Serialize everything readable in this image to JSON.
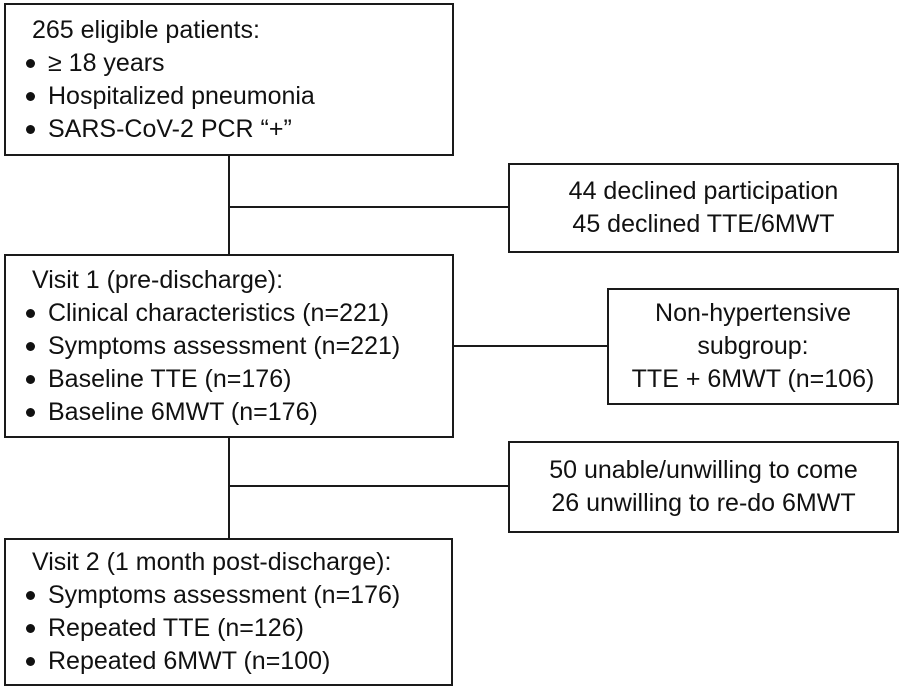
{
  "colors": {
    "background": "#ffffff",
    "box_border": "#1a1a1a",
    "text": "#111111",
    "connector": "#1a1a1a"
  },
  "boxes": {
    "eligible": {
      "title": "265 eligible patients:",
      "bullets": [
        "≥ 18 years",
        "Hospitalized pneumonia",
        "SARS-CoV-2 PCR “+”"
      ]
    },
    "declined": {
      "lines": [
        "44 declined participation",
        "45 declined TTE/6MWT"
      ]
    },
    "visit1": {
      "title": "Visit 1 (pre-discharge):",
      "bullets": [
        "Clinical characteristics (n=221)",
        "Symptoms assessment (n=221)",
        "Baseline TTE (n=176)",
        "Baseline 6MWT (n=176)"
      ]
    },
    "subgroup": {
      "lines": [
        "Non-hypertensive",
        "subgroup:",
        "TTE + 6MWT (n=106)"
      ]
    },
    "unable": {
      "lines": [
        "50 unable/unwilling to come",
        "26 unwilling to re-do 6MWT"
      ]
    },
    "visit2": {
      "title": "Visit 2 (1 month post-discharge):",
      "bullets": [
        "Symptoms assessment (n=176)",
        "Repeated TTE (n=126)",
        "Repeated 6MWT (n=100)"
      ]
    }
  }
}
